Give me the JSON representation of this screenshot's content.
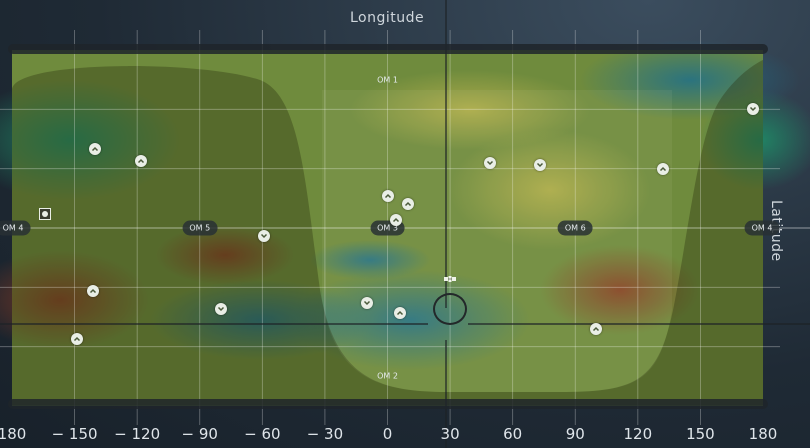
{
  "axis_titles": {
    "longitude": "Longitude",
    "latitude": "Latitude"
  },
  "lon_ticks": [
    "180",
    "− 150",
    "− 120",
    "− 90",
    "− 60",
    "− 30",
    "0",
    "30",
    "60",
    "90",
    "120",
    "150",
    "180"
  ],
  "orbit_markers": [
    {
      "label": "OM 1",
      "lon": 0,
      "lat": 75,
      "flat": true
    },
    {
      "label": "OM 2",
      "lon": 0,
      "lat": -75,
      "flat": true
    },
    {
      "label": "OM 4",
      "lon": -180,
      "lat": 0,
      "flat": false
    },
    {
      "label": "OM 5",
      "lon": -90,
      "lat": 0,
      "flat": false
    },
    {
      "label": "OM 3",
      "lon": 0,
      "lat": 0,
      "flat": false
    },
    {
      "label": "OM 6",
      "lon": 90,
      "lat": 0,
      "flat": false
    },
    {
      "label": "OM 4",
      "lon": 180,
      "lat": 0,
      "flat": false
    }
  ],
  "waypoints": [
    {
      "lon": -140,
      "lat": 40,
      "dir": "up"
    },
    {
      "lon": -118,
      "lat": 34,
      "dir": "up"
    },
    {
      "lon": -59,
      "lat": -4,
      "dir": "down"
    },
    {
      "lon": -141,
      "lat": -32,
      "dir": "up"
    },
    {
      "lon": -80,
      "lat": -41,
      "dir": "down"
    },
    {
      "lon": -149,
      "lat": -56,
      "dir": "up"
    },
    {
      "lon": 0,
      "lat": 16,
      "dir": "up"
    },
    {
      "lon": 10,
      "lat": 12,
      "dir": "up"
    },
    {
      "lon": 4,
      "lat": 4,
      "dir": "up"
    },
    {
      "lon": -10,
      "lat": -38,
      "dir": "down"
    },
    {
      "lon": 6,
      "lat": -43,
      "dir": "up"
    },
    {
      "lon": 49,
      "lat": 33,
      "dir": "down"
    },
    {
      "lon": 73,
      "lat": 32,
      "dir": "down"
    },
    {
      "lon": 132,
      "lat": 30,
      "dir": "up"
    },
    {
      "lon": 175,
      "lat": 60,
      "dir": "down"
    },
    {
      "lon": 100,
      "lat": -51,
      "dir": "up"
    }
  ],
  "station_marker": {
    "lon": -164,
    "lat": 7
  },
  "satellite": {
    "lon": 30,
    "lat": -26
  },
  "reticle": {
    "lon": 30,
    "lat": -41
  },
  "colors": {
    "land": "#6f8a3a",
    "ocean": "#2a8f6d",
    "night": "rgba(30,40,10,0.45)",
    "grid": "#ffffff",
    "marker": "#e9eee6"
  }
}
